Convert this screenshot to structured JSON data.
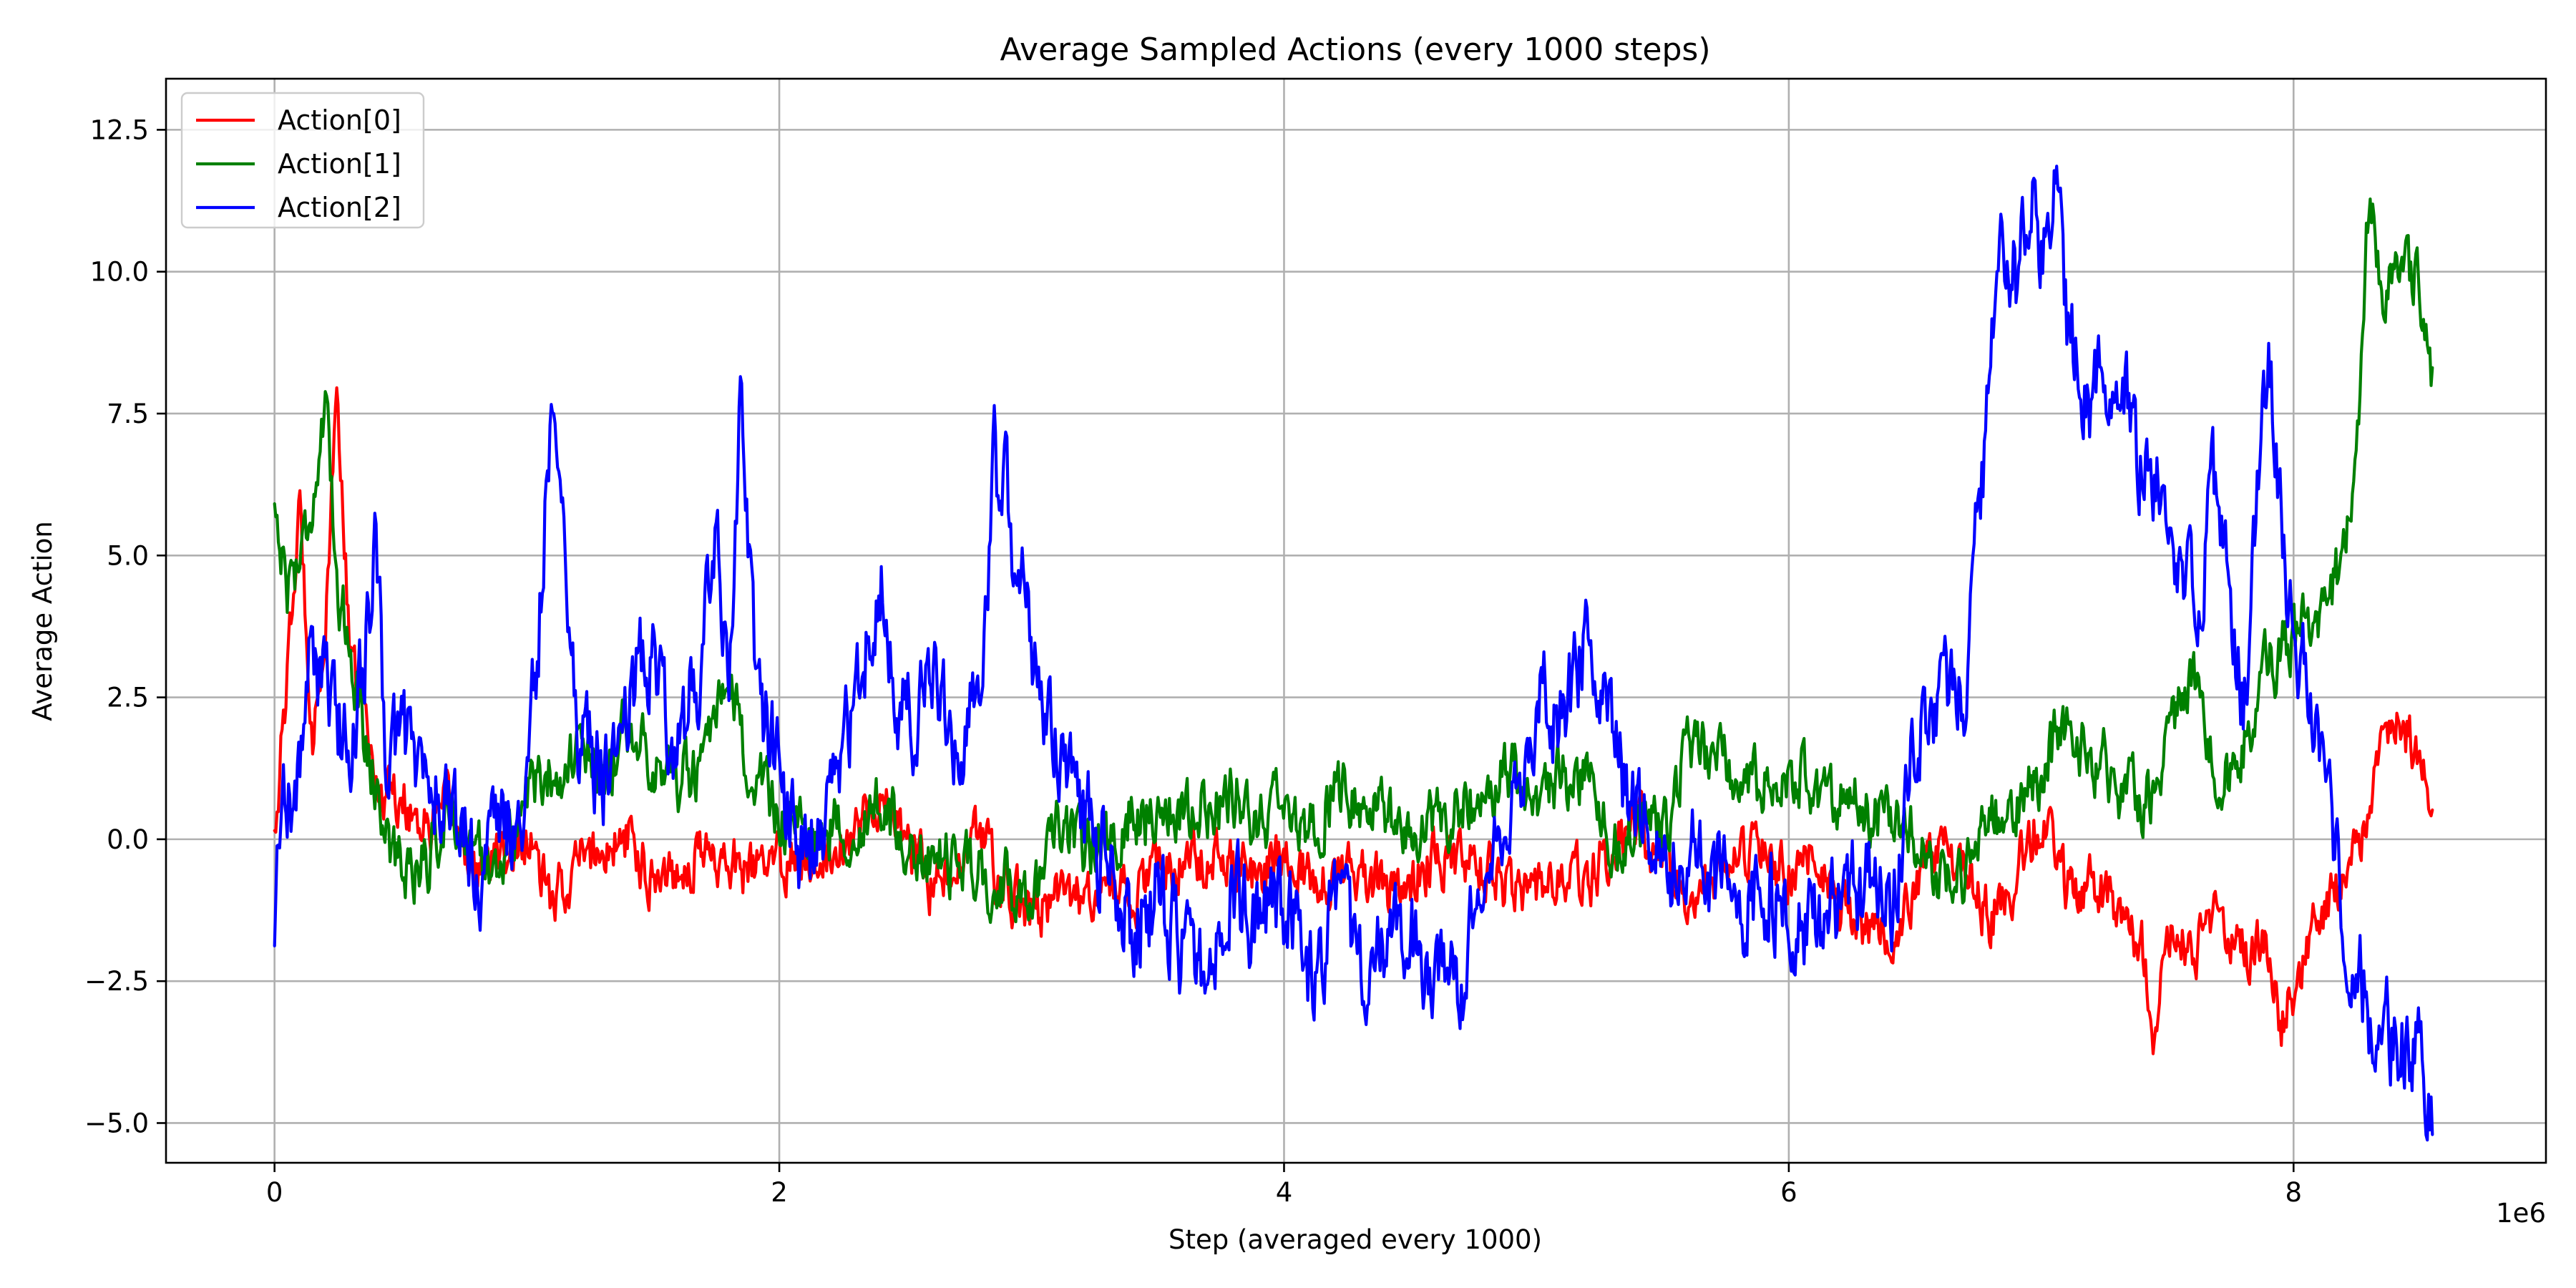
{
  "chart_data": {
    "type": "line",
    "title": "Average Sampled Actions (every 1000 steps)",
    "xlabel": "Step (averaged every 1000)",
    "ylabel": "Average Action",
    "x_offset_label": "1e6",
    "xlim": [
      -0.43,
      9.0
    ],
    "ylim": [
      -5.7,
      13.4
    ],
    "x_ticks": [
      0,
      2,
      4,
      6,
      8
    ],
    "x_tick_labels": [
      "0",
      "2",
      "4",
      "6",
      "8"
    ],
    "y_ticks": [
      -5.0,
      -2.5,
      0.0,
      2.5,
      5.0,
      7.5,
      10.0,
      12.5
    ],
    "y_tick_labels": [
      "−5.0",
      "−2.5",
      "0.0",
      "2.5",
      "5.0",
      "7.5",
      "10.0",
      "12.5"
    ],
    "grid": true,
    "legend_position": "upper-left",
    "series": [
      {
        "name": "Action[0]",
        "color": "#ff0000",
        "x": [
          0,
          0.05,
          0.1,
          0.15,
          0.2,
          0.25,
          0.3,
          0.35,
          0.4,
          0.5,
          0.6,
          0.7,
          0.8,
          0.9,
          1.0,
          1.1,
          1.2,
          1.3,
          1.4,
          1.5,
          1.6,
          1.7,
          1.8,
          1.9,
          2.0,
          2.1,
          2.2,
          2.3,
          2.4,
          2.5,
          2.6,
          2.7,
          2.8,
          2.9,
          3.0,
          3.1,
          3.2,
          3.3,
          3.4,
          3.5,
          3.6,
          3.7,
          3.8,
          3.9,
          4.0,
          4.1,
          4.2,
          4.3,
          4.4,
          4.5,
          4.6,
          4.7,
          4.8,
          4.9,
          5.0,
          5.1,
          5.2,
          5.3,
          5.4,
          5.5,
          5.6,
          5.7,
          5.8,
          5.9,
          6.0,
          6.1,
          6.2,
          6.3,
          6.4,
          6.5,
          6.6,
          6.7,
          6.8,
          6.9,
          7.0,
          7.1,
          7.2,
          7.3,
          7.4,
          7.45,
          7.5,
          7.6,
          7.7,
          7.8,
          7.9,
          7.95,
          8.0,
          8.1,
          8.2,
          8.3,
          8.4,
          8.5,
          8.55
        ],
        "y": [
          0.2,
          2.8,
          5.8,
          2.0,
          3.5,
          8.0,
          3.0,
          2.5,
          1.0,
          0.8,
          0.2,
          0.5,
          -0.6,
          -0.3,
          0.0,
          -1.2,
          -0.4,
          -0.2,
          0.0,
          -0.6,
          -0.5,
          -0.2,
          -0.4,
          -0.6,
          -0.4,
          -0.3,
          -0.1,
          0.2,
          0.8,
          0.0,
          -0.8,
          -0.6,
          0.1,
          -0.9,
          -1.3,
          -1.0,
          -1.1,
          -0.8,
          -1.0,
          -0.6,
          -0.5,
          -0.2,
          -0.4,
          -0.6,
          -0.2,
          -0.6,
          -0.7,
          -0.5,
          -0.9,
          -0.8,
          -0.2,
          -0.5,
          -0.6,
          -0.9,
          -0.8,
          -0.6,
          -0.7,
          -0.2,
          0.3,
          -0.3,
          -1.2,
          -0.9,
          -0.5,
          -0.2,
          -0.5,
          -0.3,
          -1.3,
          -1.5,
          -1.8,
          -0.8,
          -0.2,
          -0.5,
          -1.4,
          -0.6,
          0.5,
          -0.9,
          -0.8,
          -1.1,
          -1.9,
          -3.5,
          -1.5,
          -1.8,
          -1.5,
          -2.0,
          -1.8,
          -3.3,
          -2.6,
          -1.5,
          -0.8,
          0.5,
          2.3,
          1.5,
          0.6
        ]
      },
      {
        "name": "Action[1]",
        "color": "#008000",
        "x": [
          0,
          0.05,
          0.1,
          0.15,
          0.2,
          0.25,
          0.3,
          0.35,
          0.4,
          0.45,
          0.5,
          0.6,
          0.7,
          0.8,
          0.9,
          1.0,
          1.1,
          1.2,
          1.3,
          1.4,
          1.5,
          1.6,
          1.7,
          1.8,
          1.9,
          2.0,
          2.1,
          2.2,
          2.3,
          2.4,
          2.5,
          2.6,
          2.7,
          2.8,
          2.9,
          3.0,
          3.1,
          3.2,
          3.3,
          3.4,
          3.5,
          3.6,
          3.7,
          3.8,
          3.9,
          4.0,
          4.1,
          4.2,
          4.3,
          4.4,
          4.5,
          4.6,
          4.7,
          4.8,
          4.9,
          5.0,
          5.1,
          5.2,
          5.3,
          5.4,
          5.5,
          5.6,
          5.7,
          5.8,
          5.9,
          6.0,
          6.1,
          6.2,
          6.3,
          6.4,
          6.5,
          6.6,
          6.7,
          6.8,
          6.9,
          7.0,
          7.1,
          7.2,
          7.3,
          7.4,
          7.5,
          7.6,
          7.7,
          7.8,
          7.9,
          8.0,
          8.1,
          8.2,
          8.25,
          8.3,
          8.35,
          8.4,
          8.5,
          8.55
        ],
        "y": [
          5.9,
          4.5,
          5.0,
          6.0,
          7.5,
          4.5,
          3.5,
          2.0,
          1.0,
          0.0,
          -0.5,
          -0.4,
          0.6,
          -0.3,
          -0.5,
          0.8,
          1.2,
          1.5,
          1.0,
          2.0,
          1.5,
          1.0,
          1.2,
          2.6,
          1.0,
          0.5,
          0.0,
          0.2,
          0.3,
          0.5,
          0.0,
          -0.5,
          -0.3,
          -0.6,
          -0.8,
          -1.0,
          0.0,
          -0.2,
          0.0,
          0.5,
          0.3,
          0.6,
          0.5,
          0.8,
          0.3,
          0.5,
          0.0,
          1.0,
          0.5,
          0.5,
          -0.3,
          0.5,
          0.5,
          0.8,
          1.2,
          0.5,
          1.0,
          1.3,
          0.0,
          0.3,
          0.2,
          1.5,
          1.5,
          1.2,
          1.0,
          1.3,
          0.8,
          0.7,
          0.5,
          0.5,
          0.0,
          -0.5,
          -0.6,
          0.3,
          0.5,
          1.2,
          2.0,
          1.5,
          1.0,
          0.5,
          1.5,
          3.0,
          0.8,
          1.5,
          3.0,
          3.5,
          4.0,
          5.0,
          6.5,
          11.5,
          9.5,
          10.0,
          9.8,
          8.2
        ]
      },
      {
        "name": "Action[2]",
        "color": "#0000ff",
        "x": [
          0,
          0.03,
          0.08,
          0.15,
          0.2,
          0.3,
          0.4,
          0.45,
          0.5,
          0.6,
          0.7,
          0.8,
          0.9,
          1.0,
          1.05,
          1.1,
          1.15,
          1.2,
          1.3,
          1.4,
          1.5,
          1.6,
          1.7,
          1.75,
          1.8,
          1.85,
          1.9,
          2.0,
          2.1,
          2.2,
          2.3,
          2.4,
          2.5,
          2.6,
          2.7,
          2.8,
          2.85,
          2.9,
          2.95,
          3.0,
          3.1,
          3.2,
          3.3,
          3.4,
          3.5,
          3.6,
          3.7,
          3.8,
          3.9,
          4.0,
          4.1,
          4.2,
          4.3,
          4.4,
          4.5,
          4.6,
          4.7,
          4.8,
          4.9,
          5.0,
          5.1,
          5.2,
          5.3,
          5.4,
          5.5,
          5.6,
          5.7,
          5.8,
          5.9,
          6.0,
          6.1,
          6.2,
          6.3,
          6.4,
          6.5,
          6.6,
          6.7,
          6.8,
          6.85,
          6.9,
          6.95,
          7.0,
          7.05,
          7.1,
          7.2,
          7.3,
          7.4,
          7.5,
          7.6,
          7.7,
          7.8,
          7.9,
          8.0,
          8.1,
          8.2,
          8.3,
          8.4,
          8.5,
          8.55
        ],
        "y": [
          -2.0,
          1.5,
          0.5,
          3.5,
          2.5,
          1.5,
          5.0,
          1.0,
          2.0,
          1.0,
          0.5,
          -0.5,
          0.0,
          0.5,
          4.0,
          8.0,
          5.5,
          2.0,
          1.0,
          2.5,
          3.5,
          1.5,
          3.5,
          5.5,
          2.0,
          8.5,
          3.0,
          1.0,
          -0.3,
          0.5,
          2.5,
          4.5,
          2.0,
          2.5,
          2.0,
          2.5,
          6.5,
          6.0,
          4.5,
          3.5,
          1.5,
          0.5,
          -0.5,
          -1.5,
          -1.0,
          -2.0,
          -2.5,
          -0.8,
          -1.5,
          -1.0,
          -2.5,
          -1.5,
          -2.0,
          -2.3,
          -1.5,
          -2.8,
          -2.5,
          -1.0,
          0.5,
          2.5,
          2.0,
          3.5,
          1.5,
          0.5,
          -0.5,
          0.0,
          -0.5,
          -1.5,
          -1.0,
          -1.0,
          -1.5,
          -1.2,
          -0.8,
          -1.5,
          2.0,
          2.5,
          3.0,
          8.0,
          11.0,
          10.0,
          11.5,
          10.5,
          12.0,
          9.0,
          7.5,
          8.5,
          6.5,
          6.0,
          4.0,
          6.5,
          2.5,
          8.5,
          3.5,
          2.0,
          -1.5,
          -3.0,
          -3.5,
          -4.0,
          -4.5
        ]
      }
    ]
  }
}
